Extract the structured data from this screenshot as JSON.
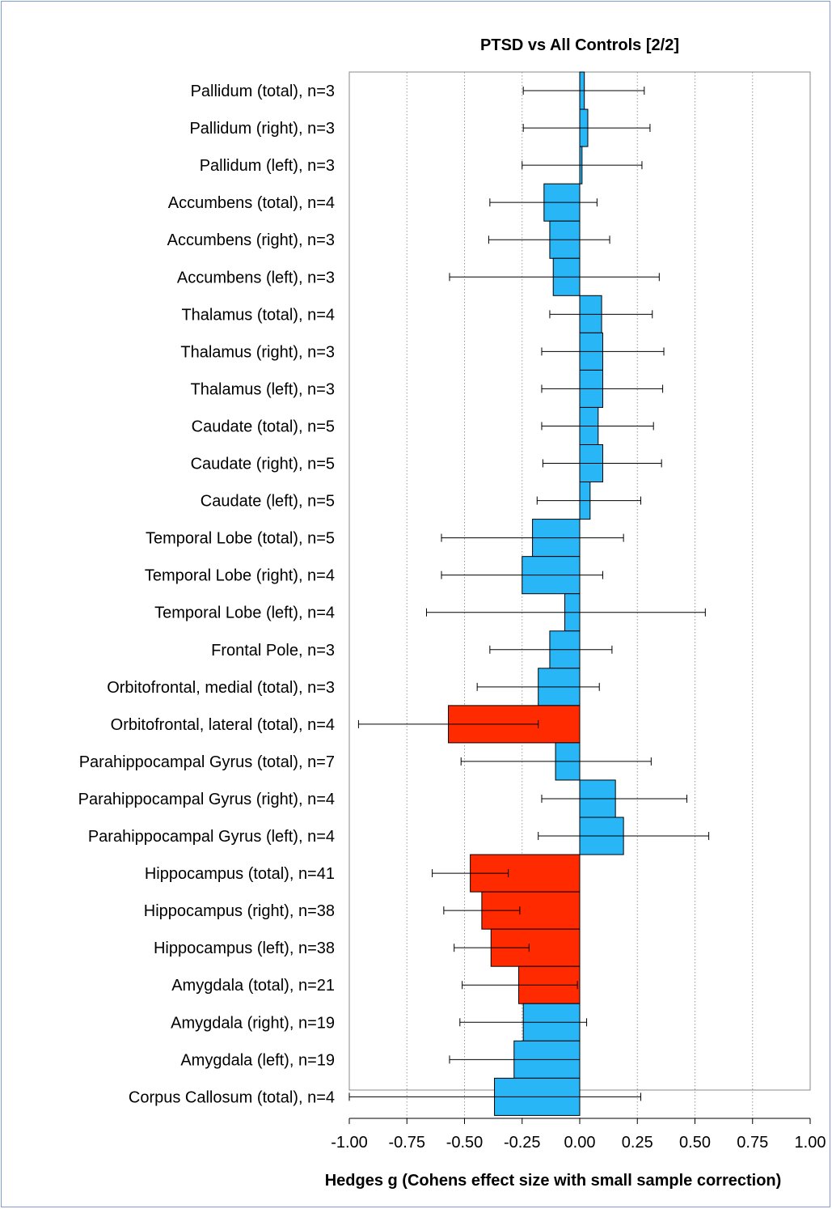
{
  "chart_data": {
    "type": "bar",
    "orientation": "horizontal",
    "title": "PTSD vs All Controls [2/2]",
    "xlabel": "Hedges g (Cohens effect size with small sample correction)",
    "ylabel": "",
    "xlim": [
      -1.0,
      1.0
    ],
    "xticks": [
      "-1.00",
      "-0.75",
      "-0.50",
      "-0.25",
      "0.00",
      "0.25",
      "0.50",
      "0.75",
      "1.00"
    ],
    "grid": "vertical dotted",
    "colors": {
      "significant": "#ff2a00",
      "non_significant": "#29b6f6",
      "error_bar": "#000000",
      "frame": "#7f9fd3"
    },
    "categories": [
      "Pallidum (total), n=3",
      "Pallidum (right), n=3",
      "Pallidum (left), n=3",
      "Accumbens (total), n=4",
      "Accumbens (right), n=3",
      "Accumbens (left), n=3",
      "Thalamus (total), n=4",
      "Thalamus (right), n=3",
      "Thalamus (left), n=3",
      "Caudate (total), n=5",
      "Caudate (right), n=5",
      "Caudate (left), n=5",
      "Temporal Lobe (total), n=5",
      "Temporal Lobe (right), n=4",
      "Temporal Lobe (left), n=4",
      "Frontal Pole, n=3",
      "Orbitofrontal, medial (total), n=3",
      "Orbitofrontal, lateral (total), n=4",
      "Parahippocampal Gyrus (total), n=7",
      "Parahippocampal Gyrus (right), n=4",
      "Parahippocampal Gyrus (left), n=4",
      "Hippocampus (total), n=41",
      "Hippocampus (right), n=38",
      "Hippocampus (left), n=38",
      "Amygdala (total), n=21",
      "Amygdala (right), n=19",
      "Amygdala (left), n=19",
      "Corpus Callosum (total), n=4"
    ],
    "values": [
      0.02,
      0.035,
      0.01,
      -0.155,
      -0.13,
      -0.115,
      0.095,
      0.1,
      0.1,
      0.08,
      0.1,
      0.045,
      -0.205,
      -0.25,
      -0.065,
      -0.13,
      -0.18,
      -0.57,
      -0.105,
      0.155,
      0.19,
      -0.475,
      -0.425,
      -0.385,
      -0.265,
      -0.245,
      -0.285,
      -0.37
    ],
    "ci_low": [
      -0.245,
      -0.245,
      -0.25,
      -0.39,
      -0.395,
      -0.565,
      -0.13,
      -0.165,
      -0.165,
      -0.165,
      -0.16,
      -0.185,
      -0.6,
      -0.6,
      -0.665,
      -0.39,
      -0.445,
      -0.96,
      -0.515,
      -0.165,
      -0.18,
      -0.64,
      -0.59,
      -0.545,
      -0.51,
      -0.52,
      -0.565,
      -1.0
    ],
    "ci_high": [
      0.28,
      0.305,
      0.27,
      0.075,
      0.13,
      0.345,
      0.315,
      0.365,
      0.36,
      0.32,
      0.355,
      0.265,
      0.19,
      0.1,
      0.545,
      0.14,
      0.085,
      -0.18,
      0.31,
      0.465,
      0.56,
      -0.31,
      -0.26,
      -0.22,
      -0.01,
      0.03,
      0.0,
      0.265
    ],
    "significant": [
      false,
      false,
      false,
      false,
      false,
      false,
      false,
      false,
      false,
      false,
      false,
      false,
      false,
      false,
      false,
      false,
      false,
      true,
      false,
      false,
      false,
      true,
      true,
      true,
      true,
      false,
      false,
      false
    ]
  }
}
